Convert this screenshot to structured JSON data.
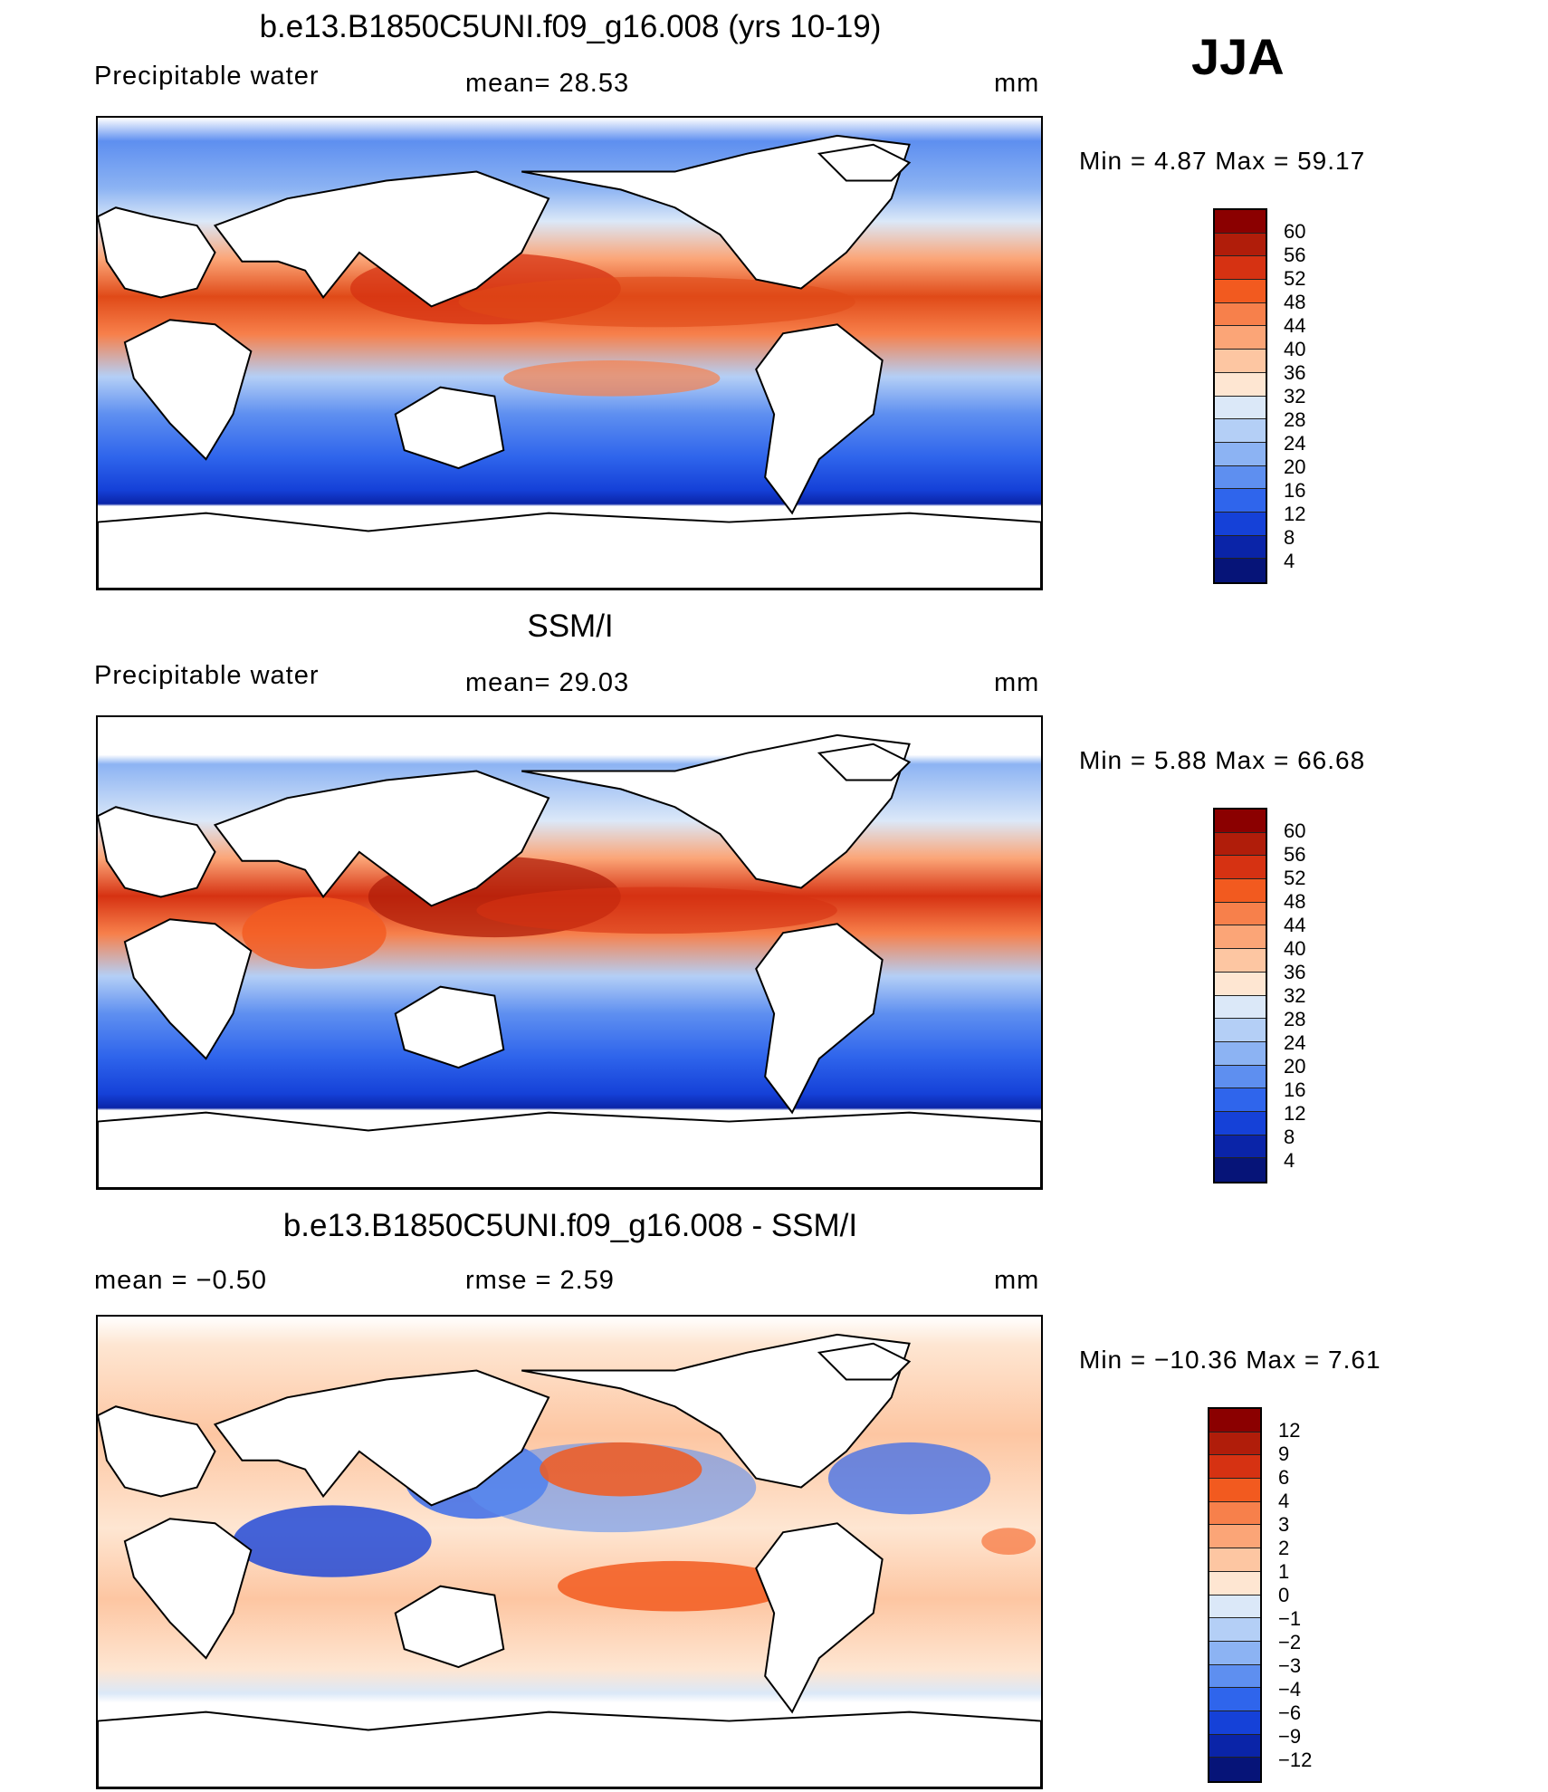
{
  "season": "JJA",
  "panels": [
    {
      "title": "b.e13.B1850C5UNI.f09_g16.008 (yrs 10-19)",
      "left_label": "Precipitable  water",
      "center_label": "mean=   28.53",
      "units": "mm",
      "minmax": "Min  =      4.87  Max  =     59.17",
      "colorbar": {
        "labels": [
          "60",
          "56",
          "52",
          "48",
          "44",
          "40",
          "36",
          "32",
          "28",
          "24",
          "20",
          "16",
          "12",
          "8",
          "4"
        ],
        "colors": [
          "#8b0000",
          "#b01d0a",
          "#d63212",
          "#f25a1f",
          "#f7804b",
          "#fba577",
          "#fdc6a2",
          "#fee6d2",
          "#dbe8f8",
          "#b4cff6",
          "#8cb3f3",
          "#5e8ff0",
          "#2f65ec",
          "#1541d8",
          "#0a24a8",
          "#061478"
        ]
      }
    },
    {
      "title": "SSM/I",
      "left_label": "Precipitable  water",
      "center_label": "mean=   29.03",
      "units": "mm",
      "minmax": "Min  =      5.88  Max  =     66.68",
      "colorbar": {
        "labels": [
          "60",
          "56",
          "52",
          "48",
          "44",
          "40",
          "36",
          "32",
          "28",
          "24",
          "20",
          "16",
          "12",
          "8",
          "4"
        ],
        "colors": [
          "#8b0000",
          "#b01d0a",
          "#d63212",
          "#f25a1f",
          "#f7804b",
          "#fba577",
          "#fdc6a2",
          "#fee6d2",
          "#dbe8f8",
          "#b4cff6",
          "#8cb3f3",
          "#5e8ff0",
          "#2f65ec",
          "#1541d8",
          "#0a24a8",
          "#061478"
        ]
      }
    },
    {
      "title": "b.e13.B1850C5UNI.f09_g16.008 - SSM/I",
      "left_label": "mean  =     −0.50",
      "center_label": "rmse  =      2.59",
      "units": "mm",
      "minmax": "Min  = −10.36  Max  =        7.61",
      "colorbar": {
        "labels": [
          "12",
          "9",
          "6",
          "4",
          "3",
          "2",
          "1",
          "0",
          "−1",
          "−2",
          "−3",
          "−4",
          "−6",
          "−9",
          "−12"
        ],
        "colors": [
          "#8b0000",
          "#b01d0a",
          "#d63212",
          "#f25a1f",
          "#f7804b",
          "#fba577",
          "#fdc6a2",
          "#fee6d2",
          "#dbe8f8",
          "#b4cff6",
          "#8cb3f3",
          "#5e8ff0",
          "#2f65ec",
          "#1541d8",
          "#0a24a8",
          "#061478"
        ]
      }
    }
  ]
}
